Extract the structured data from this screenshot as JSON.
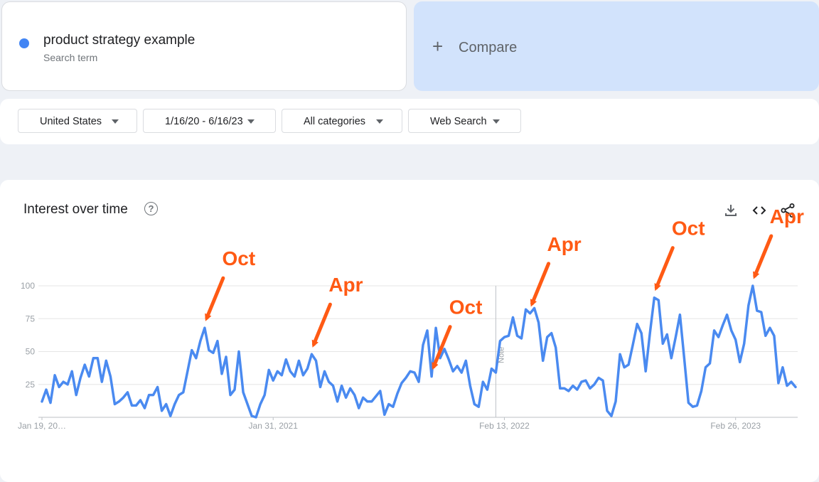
{
  "search_term": {
    "name": "product strategy example",
    "sublabel": "Search term",
    "dot_color": "#4285f4"
  },
  "compare": {
    "label": "Compare",
    "plus": "+",
    "background": "#d2e3fc"
  },
  "filters": {
    "region": "United States",
    "date_range": "1/16/20 - 6/16/23",
    "category": "All categories",
    "search_type": "Web Search"
  },
  "card": {
    "title": "Interest over time",
    "help": "?",
    "icons": [
      "download-icon",
      "embed-code-icon",
      "share-icon"
    ]
  },
  "colors": {
    "line": "#4a8af0",
    "annotation": "#ff5a14",
    "grid": "#e6e6e6",
    "axis_text": "#9aa0a6"
  },
  "chart_data": {
    "type": "line",
    "title": "Interest over time",
    "ylim": [
      0,
      100
    ],
    "y_ticks": [
      25,
      50,
      75,
      100
    ],
    "x_tick_labels": [
      {
        "index": 0,
        "label": "Jan 19, 20…"
      },
      {
        "index": 54,
        "label": "Jan 31, 2021"
      },
      {
        "index": 108,
        "label": "Feb 13, 2022"
      },
      {
        "index": 162,
        "label": "Feb 26, 2023"
      }
    ],
    "note_marker": {
      "index": 106,
      "label": "Note"
    },
    "grid": true,
    "series": [
      {
        "values": [
          12,
          21,
          11,
          32,
          23,
          27,
          25,
          35,
          17,
          30,
          40,
          31,
          45,
          45,
          27,
          43,
          31,
          10,
          12,
          15,
          19,
          9,
          9,
          13,
          7,
          17,
          17,
          23,
          5,
          10,
          1,
          10,
          17,
          19,
          35,
          51,
          45,
          58,
          68,
          51,
          49,
          58,
          33,
          46,
          17,
          21,
          50,
          19,
          10,
          1,
          0,
          10,
          17,
          36,
          28,
          35,
          32,
          44,
          35,
          31,
          43,
          32,
          37,
          48,
          43,
          23,
          35,
          27,
          24,
          12,
          24,
          15,
          22,
          17,
          7,
          15,
          12,
          12,
          16,
          20,
          2,
          10,
          8,
          18,
          26,
          30,
          35,
          34,
          27,
          55,
          66,
          31,
          68,
          45,
          52,
          44,
          35,
          39,
          34,
          43,
          24,
          10,
          8,
          27,
          21,
          37,
          34,
          58,
          61,
          62,
          76,
          62,
          60,
          82,
          79,
          83,
          72,
          43,
          61,
          64,
          53,
          22,
          22,
          20,
          24,
          21,
          27,
          28,
          22,
          25,
          30,
          28,
          5,
          1,
          12,
          48,
          38,
          40,
          55,
          71,
          64,
          35,
          64,
          91,
          89,
          56,
          63,
          45,
          61,
          78,
          45,
          11,
          8,
          9,
          20,
          38,
          41,
          66,
          61,
          70,
          78,
          66,
          59,
          42,
          56,
          85,
          100,
          81,
          80,
          62,
          68,
          62,
          26,
          38,
          24,
          27,
          23
        ]
      }
    ],
    "annotations": [
      {
        "text": "Oct",
        "index": 38
      },
      {
        "text": "Apr",
        "index": 63
      },
      {
        "text": "Oct",
        "index": 91
      },
      {
        "text": "Apr",
        "index": 114
      },
      {
        "text": "Oct",
        "index": 143
      },
      {
        "text": "Apr",
        "index": 166
      }
    ]
  }
}
